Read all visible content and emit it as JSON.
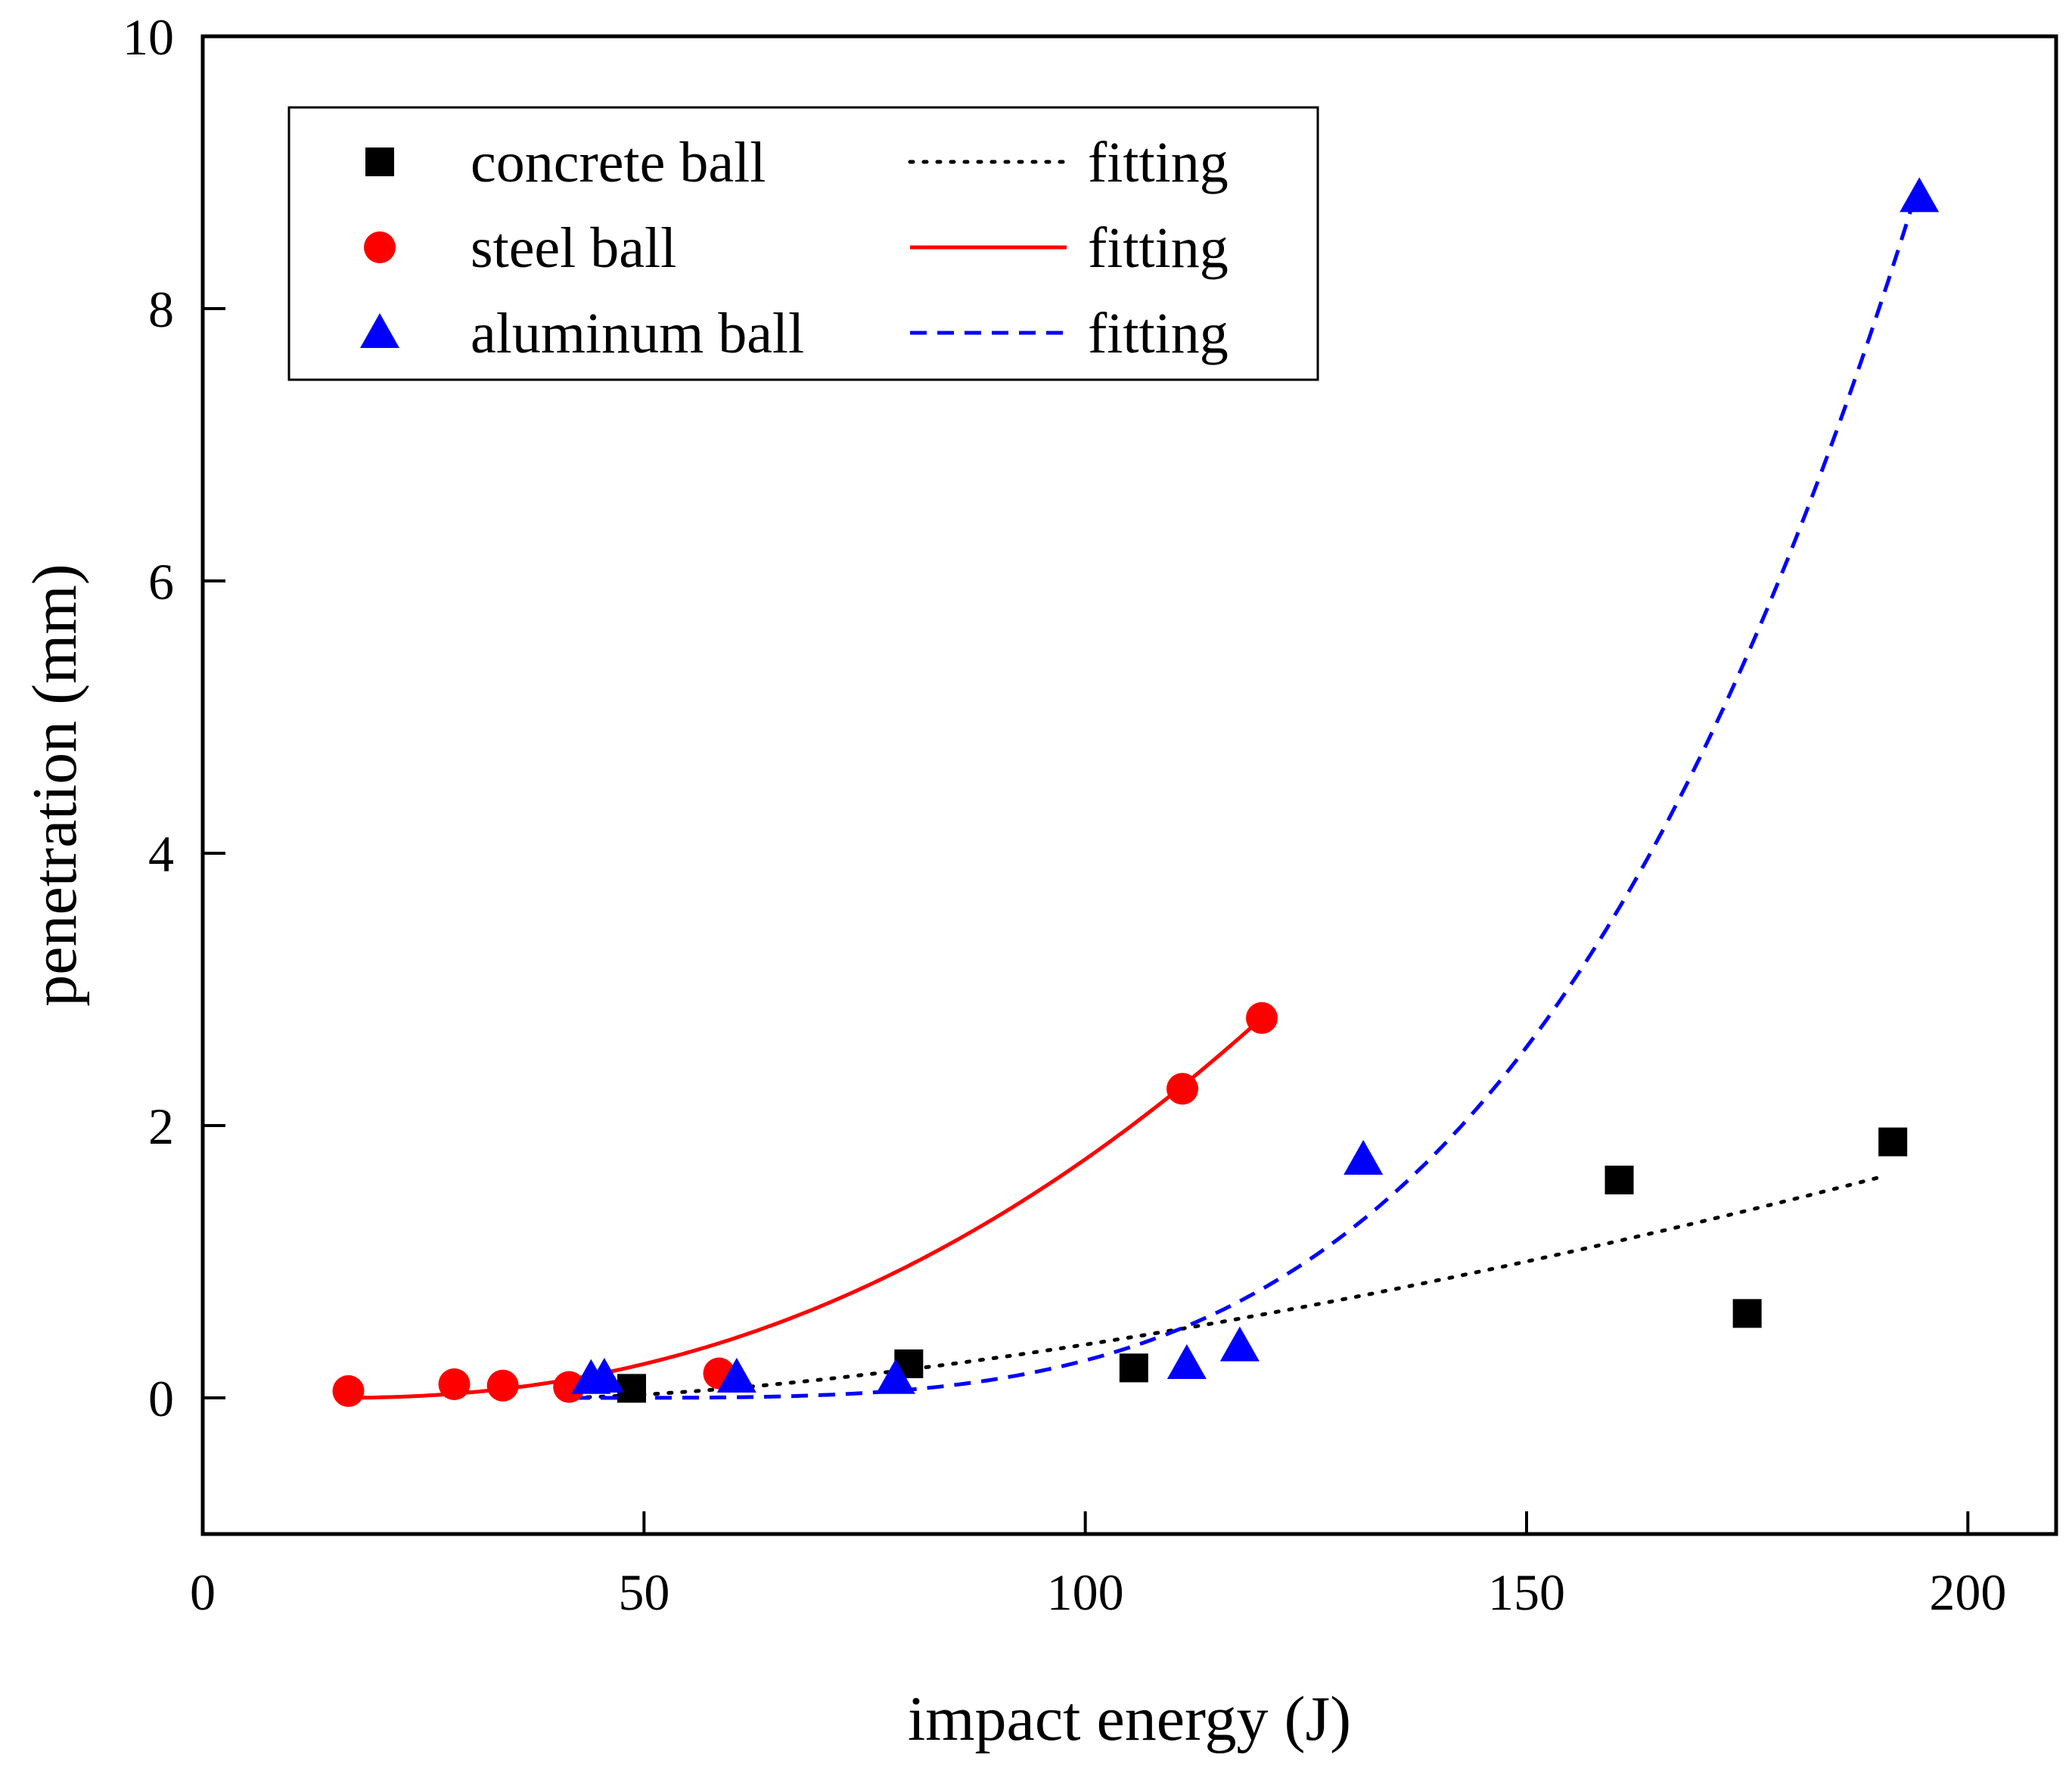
{
  "chart_data": {
    "type": "scatter",
    "title": "",
    "xlabel": "impact energy (J)",
    "ylabel": "penetration (mm)",
    "xlim": [
      0,
      210
    ],
    "ylim": [
      -1,
      10
    ],
    "xticks": [
      0,
      50,
      100,
      150,
      200
    ],
    "yticks": [
      0,
      2,
      4,
      6,
      8,
      10
    ],
    "grid": false,
    "legend_position": "top-left",
    "series": [
      {
        "name": "concrete ball",
        "marker": "square",
        "color": "#000000",
        "x": [
          48.6,
          80.0,
          105.5,
          160.5,
          175.0,
          191.5
        ],
        "y": [
          0.07,
          0.25,
          0.22,
          1.6,
          0.62,
          1.88
        ],
        "fit": {
          "label": "fitting",
          "style": "dotted",
          "x_range": [
            42,
            190
          ]
        }
      },
      {
        "name": "steel ball",
        "marker": "circle",
        "color": "#ff0000",
        "x": [
          16.5,
          28.5,
          34.0,
          41.5,
          58.5,
          111.0,
          120.0
        ],
        "y": [
          0.05,
          0.1,
          0.09,
          0.08,
          0.18,
          2.27,
          2.79
        ],
        "fit": {
          "label": "fitting",
          "style": "solid",
          "x_range": [
            15,
            120
          ]
        }
      },
      {
        "name": "aluminum ball",
        "marker": "triangle",
        "color": "#0000ff",
        "x": [
          44.0,
          45.5,
          60.5,
          78.5,
          111.5,
          117.5,
          131.5,
          194.5
        ],
        "y": [
          0.14,
          0.15,
          0.15,
          0.14,
          0.25,
          0.38,
          1.75,
          8.82
        ],
        "fit": {
          "label": "fitting",
          "style": "dashed",
          "x_range": [
            42,
            194
          ]
        }
      }
    ],
    "legend": {
      "entries": [
        {
          "label": "concrete ball",
          "fit_label": "fitting"
        },
        {
          "label": "steel ball",
          "fit_label": "fitting"
        },
        {
          "label": "aluminum ball",
          "fit_label": "fitting"
        }
      ]
    }
  }
}
